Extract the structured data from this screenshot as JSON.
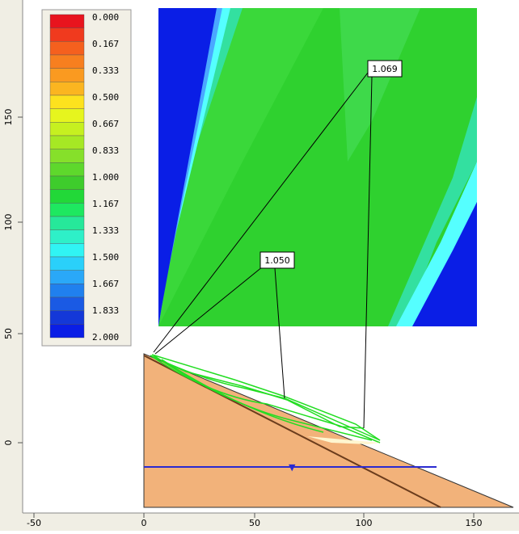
{
  "legend": {
    "labels": [
      "0.000",
      "0.167",
      "0.333",
      "0.500",
      "0.667",
      "0.833",
      "1.000",
      "1.167",
      "1.333",
      "1.500",
      "1.667",
      "1.833",
      "2.000"
    ]
  },
  "annotations": [
    "1.069",
    "1.050"
  ],
  "y_axis": {
    "ticks": [
      "150",
      "100",
      "50",
      "0"
    ]
  },
  "x_axis": {
    "ticks": [
      "-50",
      "0",
      "50",
      "100",
      "150"
    ]
  }
}
